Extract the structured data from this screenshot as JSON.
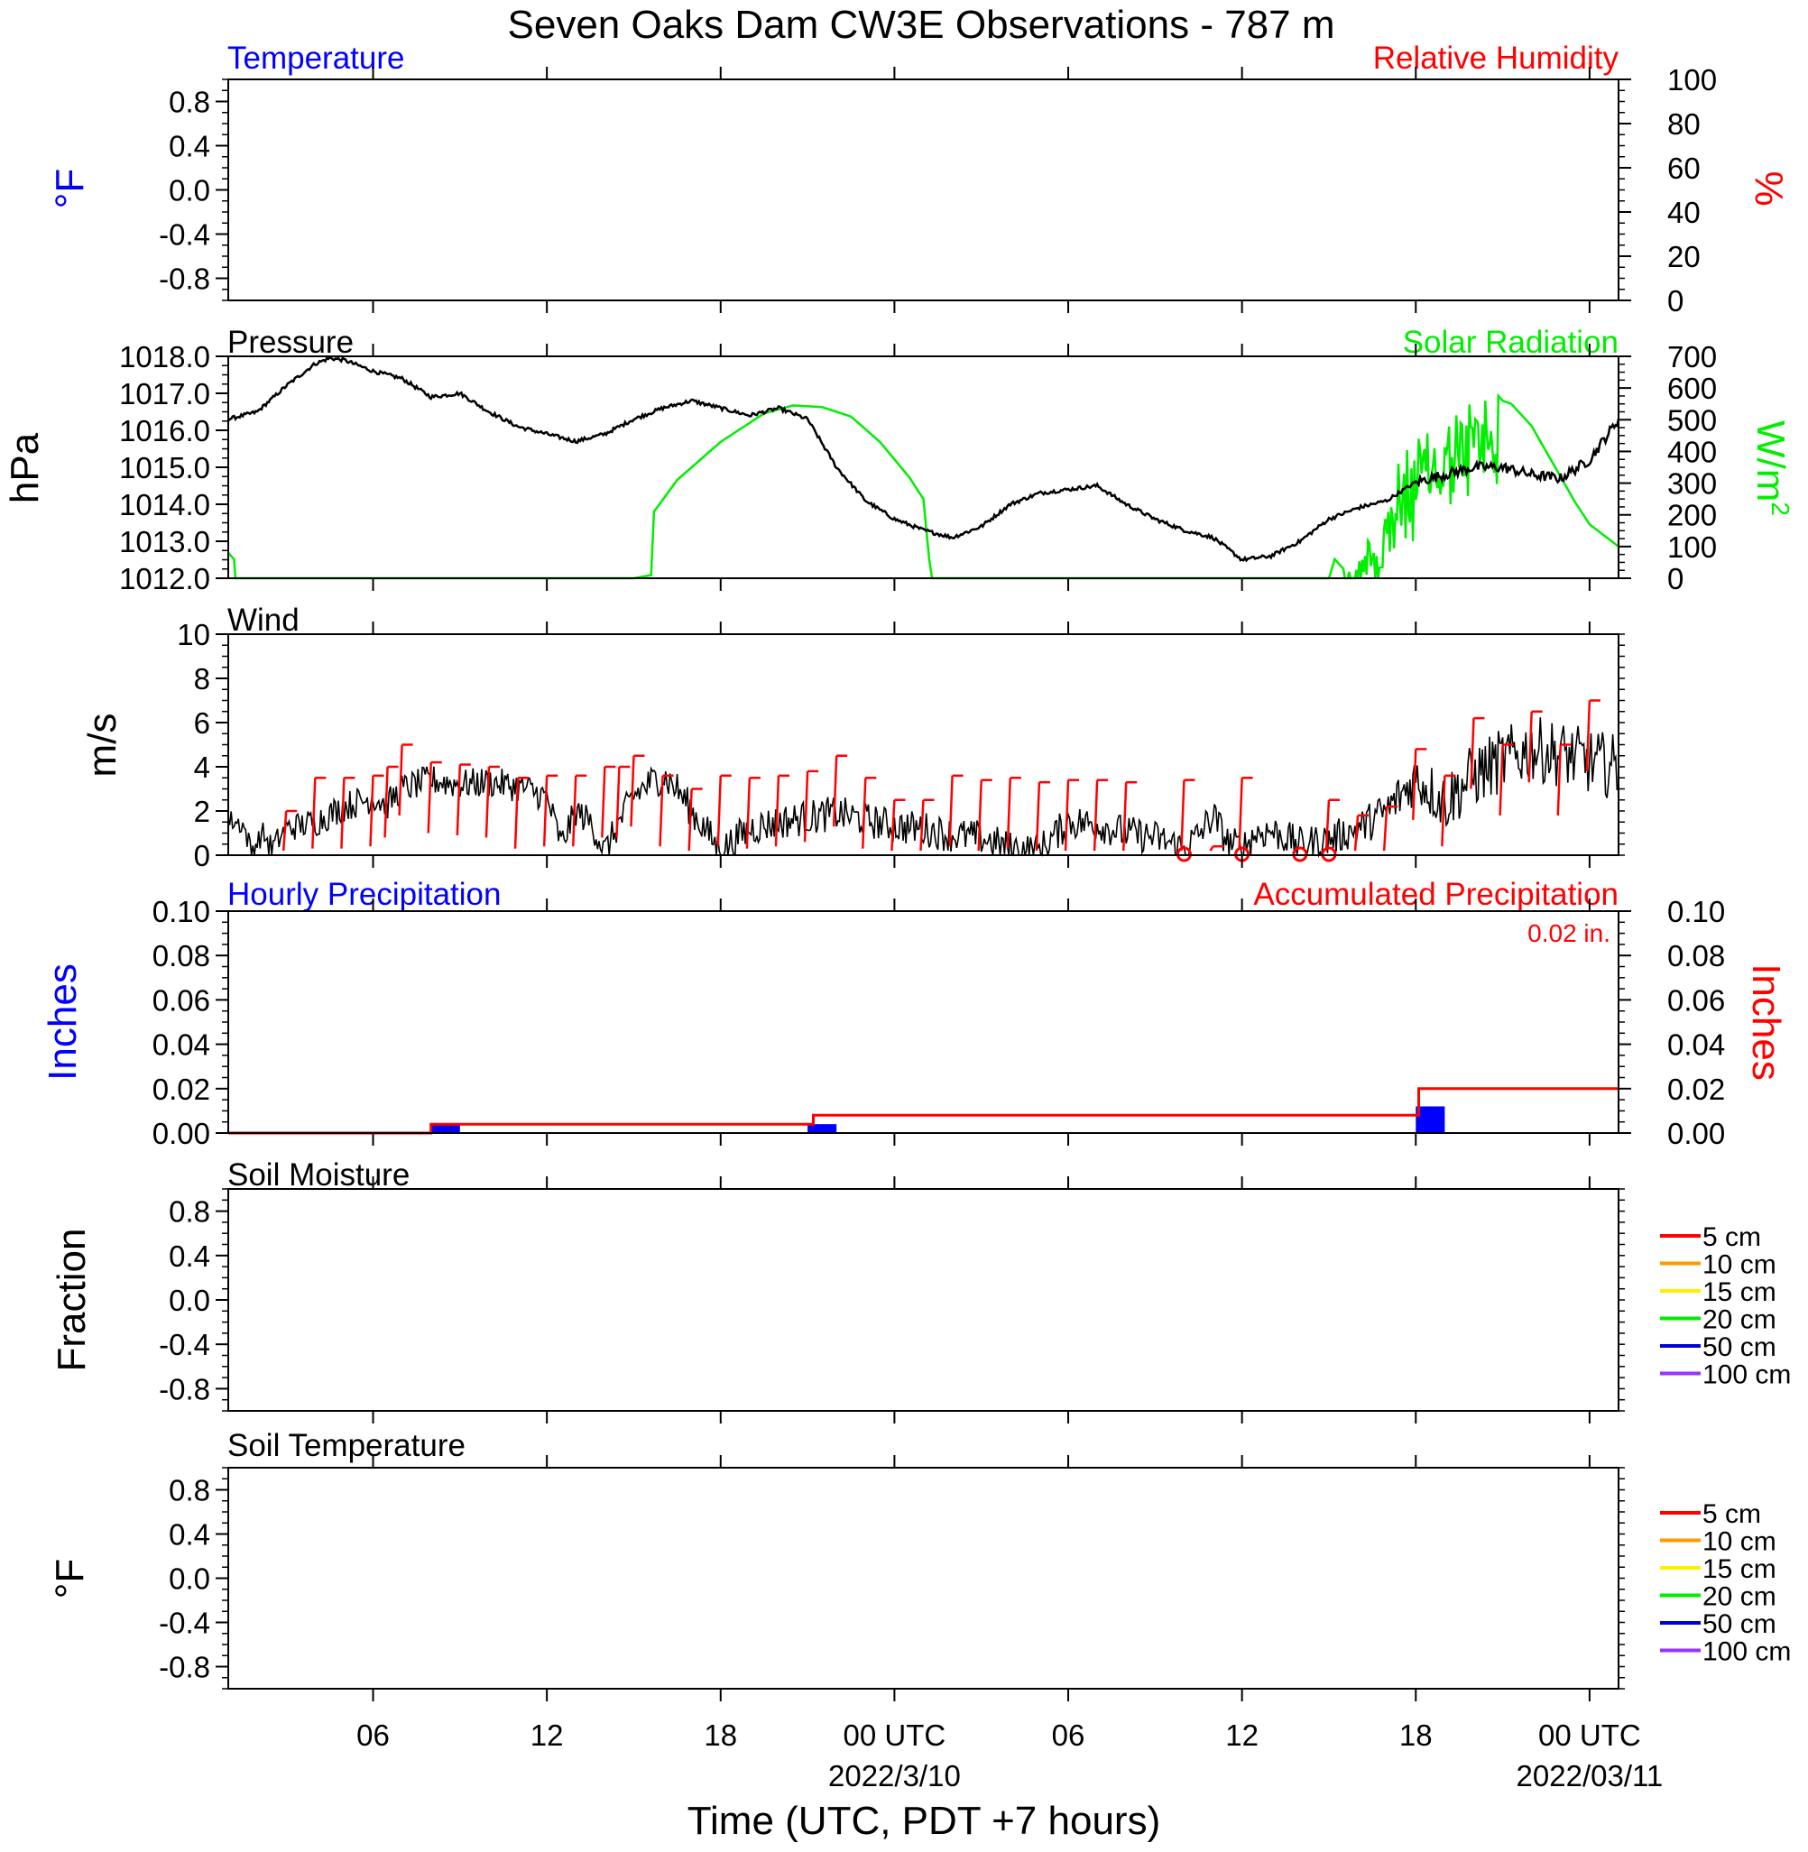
{
  "title": "Seven Oaks Dam CW3E Observations - 787 m",
  "xaxis": {
    "label": "Time (UTC, PDT +7 hours)",
    "range_hours": [
      0,
      48
    ],
    "ticks": [
      {
        "hour": 5,
        "label": "06",
        "date": ""
      },
      {
        "hour": 11,
        "label": "12",
        "date": ""
      },
      {
        "hour": 17,
        "label": "18",
        "date": ""
      },
      {
        "hour": 23,
        "label": "00 UTC",
        "date": "2022/3/10"
      },
      {
        "hour": 29,
        "label": "06",
        "date": ""
      },
      {
        "hour": 35,
        "label": "12",
        "date": ""
      },
      {
        "hour": 41,
        "label": "18",
        "date": ""
      },
      {
        "hour": 47,
        "label": "00 UTC",
        "date": "2022/03/11"
      }
    ]
  },
  "colors": {
    "blue": "#0000ff",
    "red": "#ff0000",
    "green": "#00ee00",
    "black": "#000000"
  },
  "soil_legend": [
    {
      "label": "5 cm",
      "color": "#ff0000"
    },
    {
      "label": "10 cm",
      "color": "#ff9900"
    },
    {
      "label": "15 cm",
      "color": "#ffee00"
    },
    {
      "label": "20 cm",
      "color": "#00ee00"
    },
    {
      "label": "50 cm",
      "color": "#0000dd"
    },
    {
      "label": "100 cm",
      "color": "#9933ff"
    }
  ],
  "chart_data": [
    {
      "panel": "temperature_humidity",
      "type": "line",
      "left_title": "Temperature",
      "right_title": "Relative Humidity",
      "ylabel_left": "°F",
      "ylabel_right": "%",
      "ylim_left": [
        -1,
        1
      ],
      "yticks_left": [
        "0.8",
        "0.4",
        "0.0",
        "-0.4",
        "-0.8"
      ],
      "ylim_right": [
        0,
        100
      ],
      "yticks_right": [
        "100",
        "80",
        "60",
        "40",
        "20",
        "0"
      ],
      "series": []
    },
    {
      "panel": "pressure_solar",
      "type": "line",
      "left_title": "Pressure",
      "right_title": "Solar Radiation",
      "ylabel_left": "hPa",
      "ylabel_right": "W/m",
      "ylabel_right_sup": "2",
      "ylim_left": [
        1012,
        1018
      ],
      "yticks_left": [
        "1018.0",
        "1017.0",
        "1016.0",
        "1015.0",
        "1014.0",
        "1013.0",
        "1012.0"
      ],
      "ylim_right": [
        0,
        700
      ],
      "yticks_right": [
        "700",
        "600",
        "500",
        "400",
        "300",
        "200",
        "100",
        "0"
      ],
      "pressure": {
        "x": [
          0,
          1,
          2,
          3,
          3.5,
          4,
          5,
          6,
          7,
          8,
          9,
          10,
          11,
          12,
          13,
          14,
          15,
          16,
          17,
          18,
          19,
          20,
          21,
          22,
          23,
          24,
          25,
          26,
          27,
          28,
          29,
          30,
          31,
          32,
          33,
          34,
          35,
          36,
          37,
          38,
          39,
          40,
          41,
          42,
          43,
          44,
          45,
          46,
          47,
          48
        ],
        "values": [
          1016.3,
          1016.5,
          1017.2,
          1017.8,
          1017.95,
          1017.9,
          1017.6,
          1017.4,
          1016.9,
          1017.0,
          1016.5,
          1016.1,
          1015.9,
          1015.7,
          1015.9,
          1016.3,
          1016.6,
          1016.8,
          1016.6,
          1016.4,
          1016.6,
          1016.3,
          1015.0,
          1014.1,
          1013.6,
          1013.3,
          1013.1,
          1013.4,
          1014.0,
          1014.3,
          1014.4,
          1014.5,
          1014.0,
          1013.6,
          1013.3,
          1013.1,
          1012.5,
          1012.6,
          1013.0,
          1013.6,
          1013.9,
          1014.1,
          1014.6,
          1014.8,
          1015.0,
          1015.0,
          1014.8,
          1014.7,
          1015.2,
          1016.3
        ]
      },
      "solar": {
        "x": [
          0,
          0.2,
          0.25,
          14,
          14.6,
          14.7,
          15.5,
          17,
          18.5,
          19.5,
          20.5,
          21.5,
          22.5,
          23.5,
          24,
          24.2,
          24.3,
          30,
          36,
          38,
          38.2,
          38.6,
          38.9,
          39.2,
          39.6,
          40,
          40.5,
          41,
          41.5,
          42,
          42.5,
          43,
          43.5,
          44,
          44.3,
          44.6,
          45,
          45.5,
          46,
          46.5,
          47,
          48
        ],
        "values": [
          80,
          60,
          0,
          0,
          10,
          210,
          310,
          430,
          520,
          545,
          540,
          510,
          430,
          320,
          250,
          60,
          0,
          0,
          0,
          0,
          60,
          20,
          20,
          120,
          200,
          300,
          380,
          430,
          480,
          500,
          540,
          560,
          610,
          560,
          550,
          520,
          480,
          400,
          320,
          240,
          170,
          100
        ]
      },
      "solar_noise": {
        "hours": [
          38.5,
          43.8
        ],
        "amplitude": 190
      }
    },
    {
      "panel": "wind",
      "type": "line",
      "left_title": "Wind",
      "ylabel_left": "m/s",
      "ylim_left": [
        0,
        10
      ],
      "yticks_left": [
        "10",
        "8",
        "6",
        "4",
        "2",
        "0"
      ],
      "speed": {
        "x": [
          0,
          0.5,
          0.8,
          1.2,
          1.5,
          2,
          3,
          4,
          5,
          5.5,
          6,
          7,
          8,
          9,
          10,
          10.5,
          11,
          11.5,
          12,
          12.5,
          13,
          14,
          14.5,
          15,
          15.5,
          16,
          17,
          18,
          19,
          20,
          21,
          22,
          23,
          24,
          25,
          26,
          27,
          28,
          29,
          30,
          31,
          32,
          33,
          33.5,
          34,
          34.5,
          35,
          35.5,
          36,
          37,
          38,
          39,
          40,
          41,
          42,
          43,
          44,
          45,
          46,
          47,
          48
        ],
        "values": [
          1.6,
          1.4,
          0.2,
          1.0,
          0.3,
          1.2,
          1.5,
          2.2,
          2.6,
          2.3,
          3.0,
          3.4,
          3.2,
          3.3,
          3.1,
          2.9,
          2.6,
          0.5,
          2.0,
          1.5,
          0.2,
          2.7,
          3.2,
          3.6,
          3.0,
          2.0,
          0.2,
          1.2,
          1.5,
          1.7,
          1.9,
          1.6,
          1.3,
          1.2,
          0.9,
          0.8,
          0.3,
          0.2,
          1.5,
          1.4,
          1.0,
          0.8,
          0.3,
          0.9,
          1.8,
          0.6,
          0.3,
          1.0,
          1.1,
          0.5,
          0.7,
          1.2,
          2.0,
          3.5,
          2.4,
          3.6,
          4.3,
          4.8,
          4.6,
          4.2,
          4.0
        ],
        "noise_amplitude": [
          0.5,
          0.5,
          0.5,
          0.5,
          0.6,
          0.6,
          0.7,
          0.7,
          0.7,
          0.7,
          0.7,
          0.7,
          0.7,
          0.7,
          0.7,
          0.7,
          0.7,
          0.7,
          0.7,
          0.7,
          0.7,
          0.8,
          0.8,
          0.8,
          0.8,
          0.8,
          0.8,
          0.8,
          0.8,
          0.8,
          0.8,
          0.8,
          0.8,
          0.8,
          0.8,
          0.8,
          0.8,
          0.8,
          0.8,
          0.8,
          0.8,
          0.8,
          0.8,
          0.8,
          0.8,
          0.8,
          0.8,
          0.8,
          0.8,
          0.8,
          0.8,
          0.8,
          1.0,
          1.2,
          1.4,
          1.5,
          1.5,
          1.5,
          1.5,
          1.5,
          1.5
        ]
      },
      "barbs": {
        "x": [
          2,
          3,
          4,
          5,
          5.5,
          6,
          7,
          8,
          9,
          10,
          11,
          12,
          13,
          13.5,
          14,
          15,
          16,
          17,
          18,
          19,
          20,
          21,
          22,
          23,
          24,
          25,
          26,
          27,
          28,
          29,
          30,
          31,
          32,
          33,
          34,
          35,
          36,
          37,
          38,
          39,
          40,
          41,
          42,
          43,
          44,
          45,
          46,
          47
        ],
        "speeds": [
          2.0,
          3.5,
          3.5,
          3.6,
          4.0,
          5.0,
          4.2,
          4.1,
          4.0,
          3.5,
          3.6,
          3.6,
          4.0,
          4.0,
          4.5,
          3.6,
          3.0,
          3.6,
          3.5,
          3.6,
          3.8,
          4.5,
          3.5,
          2.5,
          2.5,
          3.6,
          3.4,
          3.5,
          3.3,
          3.4,
          3.4,
          3.3,
          0,
          3.4,
          0.4,
          3.5,
          0,
          0,
          2.5,
          1.8,
          2.2,
          4.8,
          3.6,
          6.2,
          5.0,
          6.5,
          5.0,
          7.0
        ],
        "calm_circles": [
          33,
          35,
          37,
          38
        ]
      }
    },
    {
      "panel": "precipitation",
      "type": "bar",
      "left_title": "Hourly Precipitation",
      "right_title": "Accumulated Precipitation",
      "total_label": "0.02 in.",
      "ylabel_left": "Inches",
      "ylabel_right": "Inches",
      "ylim": [
        0,
        0.1
      ],
      "yticks": [
        "0.10",
        "0.08",
        "0.06",
        "0.04",
        "0.02",
        "0.00"
      ],
      "hourly_bars": [
        {
          "start": 7,
          "end": 8,
          "value": 0.004
        },
        {
          "start": 20,
          "end": 21,
          "value": 0.004
        },
        {
          "start": 41,
          "end": 42,
          "value": 0.012
        }
      ],
      "accumulated": {
        "x": [
          0,
          7,
          7,
          20.2,
          20.2,
          41.1,
          41.1,
          48
        ],
        "values": [
          0,
          0,
          0.004,
          0.004,
          0.008,
          0.008,
          0.02,
          0.02
        ]
      }
    },
    {
      "panel": "soil_moisture",
      "type": "line",
      "left_title": "Soil Moisture",
      "ylabel_left": "Fraction",
      "ylim_left": [
        -1,
        1
      ],
      "yticks_left": [
        "0.8",
        "0.4",
        "0.0",
        "-0.4",
        "-0.8"
      ],
      "series": []
    },
    {
      "panel": "soil_temperature",
      "type": "line",
      "left_title": "Soil Temperature",
      "ylabel_left": "°F",
      "ylim_left": [
        -1,
        1
      ],
      "yticks_left": [
        "0.8",
        "0.4",
        "0.0",
        "-0.4",
        "-0.8"
      ],
      "series": []
    }
  ]
}
